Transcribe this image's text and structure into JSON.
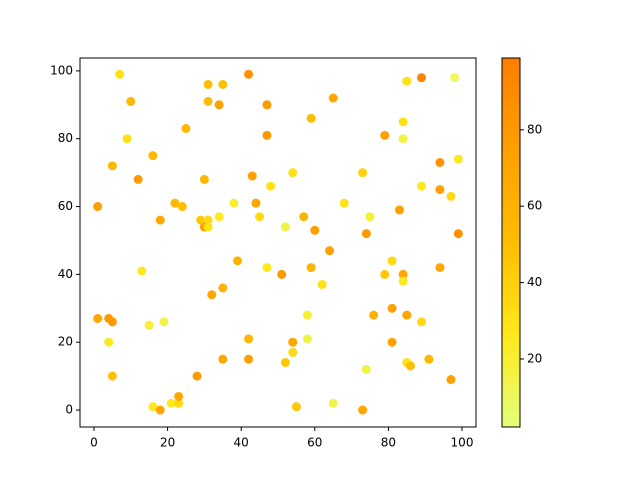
{
  "chart_data": {
    "type": "scatter",
    "x": [
      7,
      10,
      31,
      35,
      31,
      34,
      42,
      47,
      65,
      89,
      98,
      85,
      9,
      25,
      16,
      5,
      12,
      59,
      79,
      84,
      84,
      47,
      43,
      48,
      54,
      30,
      1,
      22,
      24,
      18,
      29,
      31,
      30,
      31,
      34,
      38,
      44,
      45,
      52,
      57,
      60,
      68,
      73,
      75,
      74,
      83,
      89,
      94,
      94,
      97,
      99,
      99,
      13,
      39,
      47,
      51,
      59,
      62,
      64,
      79,
      81,
      84,
      84,
      94,
      1,
      4,
      5,
      4,
      15,
      19,
      32,
      35,
      42,
      42,
      35,
      54,
      54,
      52,
      58,
      58,
      76,
      81,
      81,
      85,
      89,
      91,
      85,
      86,
      74,
      5,
      16,
      18,
      21,
      23,
      23,
      28,
      55,
      65,
      73,
      97
    ],
    "y": [
      99,
      91,
      96,
      96,
      91,
      90,
      99,
      90,
      92,
      98,
      98,
      97,
      80,
      83,
      75,
      72,
      68,
      86,
      81,
      85,
      80,
      81,
      69,
      66,
      70,
      68,
      60,
      61,
      60,
      56,
      56,
      56,
      54,
      54,
      57,
      61,
      61,
      57,
      54,
      57,
      53,
      61,
      70,
      57,
      52,
      59,
      66,
      73,
      65,
      63,
      74,
      52,
      41,
      44,
      42,
      40,
      42,
      37,
      47,
      40,
      44,
      40,
      38,
      42,
      27,
      27,
      26,
      20,
      25,
      26,
      34,
      36,
      21,
      15,
      15,
      20,
      17,
      14,
      28,
      21,
      28,
      30,
      20,
      28,
      26,
      15,
      14,
      13,
      12,
      10,
      1,
      0,
      2,
      2,
      4,
      10,
      1,
      2,
      0,
      9
    ],
    "c": [
      30,
      55,
      50,
      50,
      50,
      75,
      85,
      80,
      70,
      95,
      10,
      30,
      30,
      55,
      55,
      55,
      80,
      50,
      75,
      30,
      15,
      80,
      75,
      30,
      30,
      55,
      75,
      55,
      50,
      70,
      45,
      35,
      75,
      30,
      25,
      20,
      70,
      35,
      15,
      60,
      75,
      30,
      40,
      20,
      80,
      75,
      25,
      85,
      75,
      35,
      25,
      85,
      25,
      60,
      25,
      80,
      60,
      30,
      75,
      45,
      35,
      70,
      25,
      70,
      70,
      80,
      80,
      25,
      20,
      15,
      70,
      60,
      55,
      75,
      70,
      70,
      35,
      45,
      20,
      15,
      60,
      75,
      75,
      70,
      35,
      55,
      30,
      50,
      15,
      50,
      25,
      70,
      25,
      35,
      70,
      80,
      45,
      15,
      70,
      75
    ],
    "xlim": [
      -3.8,
      103.8
    ],
    "ylim": [
      -5.0,
      103.8
    ],
    "xticks": [
      0,
      20,
      40,
      60,
      80,
      100
    ],
    "yticks": [
      0,
      20,
      40,
      60,
      80,
      100
    ],
    "colormap": [
      "#e4ff7a",
      "#ffe81a",
      "#ffbd00",
      "#ffa000",
      "#fc7f00"
    ],
    "clim": [
      2.2,
      98.8
    ],
    "cticks": [
      20,
      40,
      60,
      80
    ]
  }
}
